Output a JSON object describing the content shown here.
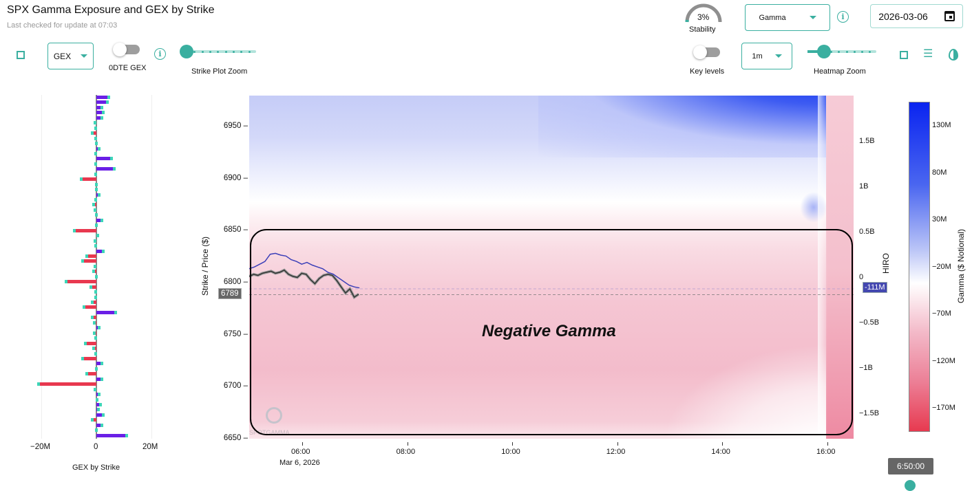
{
  "header": {
    "title": "SPX Gamma Exposure and GEX by Strike",
    "subtitle": "Last checked for update at 07:03",
    "stability": {
      "value": "3%",
      "label": "Stability",
      "fraction": 0.03
    },
    "greek_select": "Gamma",
    "date": "2026-03-06"
  },
  "controls": {
    "gex_select": "GEX",
    "odte_label": "0DTE GEX",
    "odte_on": false,
    "strike_zoom_label": "Strike Plot Zoom",
    "strike_zoom_value": 0,
    "key_levels_label": "Key levels",
    "key_levels_on": false,
    "interval_select": "1m",
    "heatmap_zoom_label": "Heatmap Zoom",
    "heatmap_zoom_value": 0.2
  },
  "colors": {
    "accent": "#3aafa0",
    "positive": "#6a1fe6",
    "negative": "#e8384f",
    "hiro": "#3b3fb8"
  },
  "chart_data": [
    {
      "type": "bar",
      "title": "GEX by Strike",
      "xlim": [
        -25,
        25
      ],
      "xticks": [
        "−20M",
        "0",
        "20M"
      ],
      "strikes_desc_from": 6980,
      "strike_step": 5,
      "values_millions": [
        4.5,
        4,
        2,
        2.5,
        2,
        -0.5,
        -0.3,
        -1.5,
        -0.3,
        0.1,
        1,
        -0.3,
        5.5,
        -0.3,
        6.5,
        -0.2,
        -5.5,
        0.1,
        0.1,
        1,
        -0.2,
        -1,
        -0.5,
        -0.1,
        2,
        -0.1,
        -8,
        0.5,
        -0.5,
        -0.2,
        2.5,
        -3.5,
        -5,
        -0.5,
        -1,
        0.1,
        -11,
        -2,
        -0.3,
        -0.3,
        -1.5,
        -4.5,
        7,
        -1.5,
        -0.8,
        1,
        -0.8,
        -0.3,
        -4,
        -1,
        -0.3,
        -5,
        2,
        -0.1,
        -3.5,
        2,
        -21,
        -0.5,
        1,
        0.3,
        1.5,
        0.8,
        2.5,
        -1.5,
        2,
        -0.1,
        11
      ]
    },
    {
      "type": "heatmap",
      "ylabel": "Strike / Price ($)",
      "ylim": [
        6650,
        6980
      ],
      "yticks": [
        "6950",
        "6900",
        "6850",
        "6800",
        "6750",
        "6700",
        "6650"
      ],
      "xticks": [
        "06:00",
        "08:00",
        "10:00",
        "12:00",
        "14:00",
        "16:00"
      ],
      "xdate": "Mar 6, 2026",
      "y2label": "HIRO",
      "y2ticks": [
        "1.5B",
        "1B",
        "0.5B",
        "0",
        "−0.5B",
        "−1B",
        "−1.5B"
      ],
      "colorbar_label": "Gamma ($ Notional)",
      "colorbar_ticks": [
        "130M",
        "80M",
        "30M",
        "−20M",
        "−70M",
        "−120M",
        "−170M"
      ],
      "price_label": "6789",
      "hiro_label": "-111M",
      "price_series": [
        6806,
        6808,
        6807,
        6809,
        6810,
        6811,
        6809,
        6810,
        6812,
        6808,
        6806,
        6805,
        6809,
        6808,
        6803,
        6799,
        6804,
        6807,
        6808,
        6807,
        6802,
        6796,
        6790,
        6794,
        6786,
        6789
      ],
      "hiro_series_billions": [
        0.1,
        0.12,
        0.15,
        0.18,
        0.26,
        0.27,
        0.25,
        0.24,
        0.2,
        0.18,
        0.15,
        0.17,
        0.14,
        0.12,
        0.1,
        0.06,
        0.04,
        0.0,
        -0.04,
        -0.08,
        -0.1,
        -0.111
      ],
      "annotation": "Negative Gamma",
      "watermark": "SPOTGAMMA"
    }
  ],
  "tooltip": "6:50:00"
}
